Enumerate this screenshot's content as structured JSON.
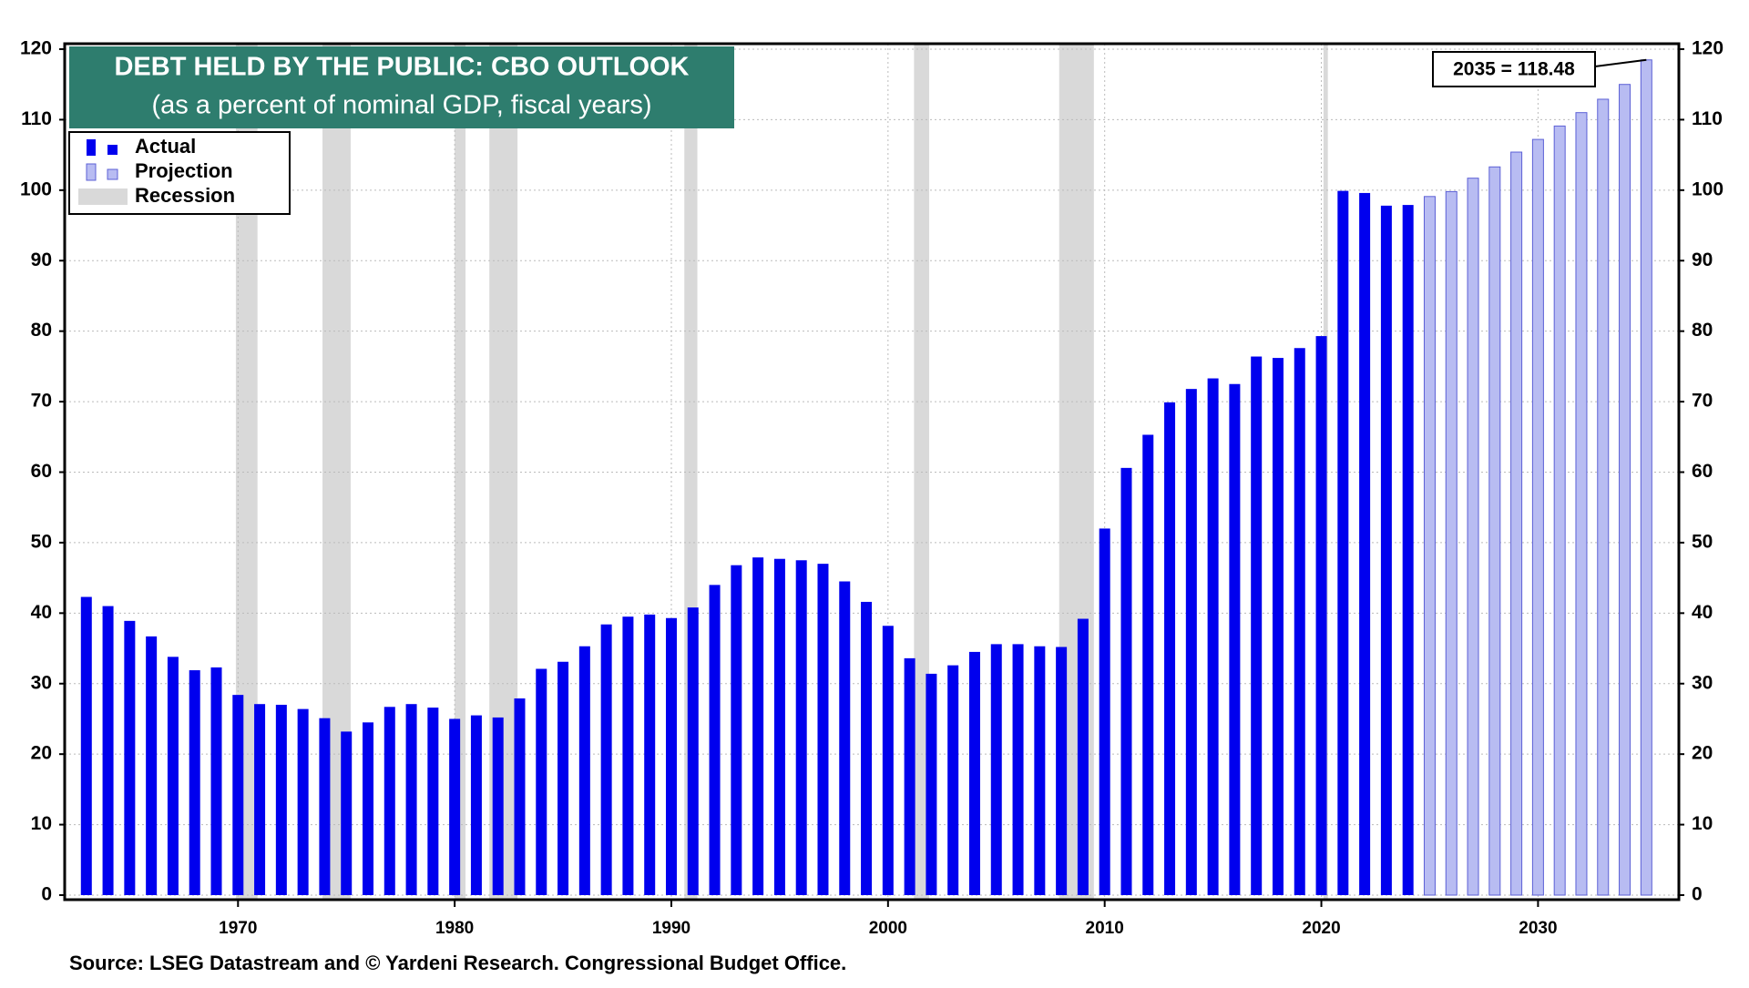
{
  "chart_data": {
    "type": "bar",
    "title": "DEBT HELD BY THE PUBLIC: CBO OUTLOOK",
    "subtitle": "(as a percent of nominal GDP, fiscal years)",
    "source": "Source: LSEG Datastream and © Yardeni Research. Congressional Budget Office.",
    "annotation": "2035 = 118.48",
    "recession_label": "Recession",
    "recession_color": "#d9d9d9",
    "recessions": [
      [
        1969.9,
        1970.9
      ],
      [
        1973.9,
        1975.2
      ],
      [
        1980.0,
        1980.5
      ],
      [
        1981.6,
        1982.9
      ],
      [
        1990.6,
        1991.2
      ],
      [
        2001.2,
        2001.9
      ],
      [
        2007.9,
        2009.5
      ],
      [
        2020.1,
        2020.3
      ]
    ],
    "x": [
      1963,
      1964,
      1965,
      1966,
      1967,
      1968,
      1969,
      1970,
      1971,
      1972,
      1973,
      1974,
      1975,
      1976,
      1977,
      1978,
      1979,
      1980,
      1981,
      1982,
      1983,
      1984,
      1985,
      1986,
      1987,
      1988,
      1989,
      1990,
      1991,
      1992,
      1993,
      1994,
      1995,
      1996,
      1997,
      1998,
      1999,
      2000,
      2001,
      2002,
      2003,
      2004,
      2005,
      2006,
      2007,
      2008,
      2009,
      2010,
      2011,
      2012,
      2013,
      2014,
      2015,
      2016,
      2017,
      2018,
      2019,
      2020,
      2021,
      2022,
      2023,
      2024,
      2025,
      2026,
      2027,
      2028,
      2029,
      2030,
      2031,
      2032,
      2033,
      2034,
      2035
    ],
    "series": [
      {
        "name": "Actual",
        "color": "#0000ee",
        "values": [
          42.3,
          41,
          38.9,
          36.7,
          33.8,
          31.9,
          32.3,
          28.4,
          27.1,
          27,
          26.4,
          25.1,
          23.2,
          24.5,
          26.7,
          27.1,
          26.6,
          25,
          25.5,
          25.2,
          27.9,
          32.1,
          33.1,
          35.3,
          38.4,
          39.5,
          39.8,
          39.3,
          40.8,
          44,
          46.8,
          47.9,
          47.7,
          47.5,
          47,
          44.5,
          41.6,
          38.2,
          33.6,
          31.4,
          32.6,
          34.5,
          35.6,
          35.6,
          35.3,
          35.2,
          39.2,
          52,
          60.6,
          65.3,
          69.9,
          71.8,
          73.3,
          72.5,
          76.4,
          76.2,
          77.6,
          79.3,
          99.9,
          99.6,
          97.8,
          97.9,
          null,
          null,
          null,
          null,
          null,
          null,
          null,
          null,
          null,
          null,
          null
        ]
      },
      {
        "name": "Projection",
        "color": "#b8bcf2",
        "values": [
          null,
          null,
          null,
          null,
          null,
          null,
          null,
          null,
          null,
          null,
          null,
          null,
          null,
          null,
          null,
          null,
          null,
          null,
          null,
          null,
          null,
          null,
          null,
          null,
          null,
          null,
          null,
          null,
          null,
          null,
          null,
          null,
          null,
          null,
          null,
          null,
          null,
          null,
          null,
          null,
          null,
          null,
          null,
          null,
          null,
          null,
          null,
          null,
          null,
          null,
          null,
          null,
          null,
          null,
          null,
          null,
          null,
          null,
          null,
          null,
          null,
          null,
          99.1,
          99.8,
          101.7,
          103.3,
          105.4,
          107.2,
          109.1,
          111,
          112.9,
          115,
          118.48
        ]
      }
    ],
    "xlim": [
      1962,
      2036.5
    ],
    "xticks": [
      1970,
      1980,
      1990,
      2000,
      2010,
      2020,
      2030
    ],
    "ylim": [
      0,
      120
    ],
    "yticks": [
      0,
      10,
      20,
      30,
      40,
      50,
      60,
      70,
      80,
      90,
      100,
      110,
      120
    ],
    "grid": true
  }
}
